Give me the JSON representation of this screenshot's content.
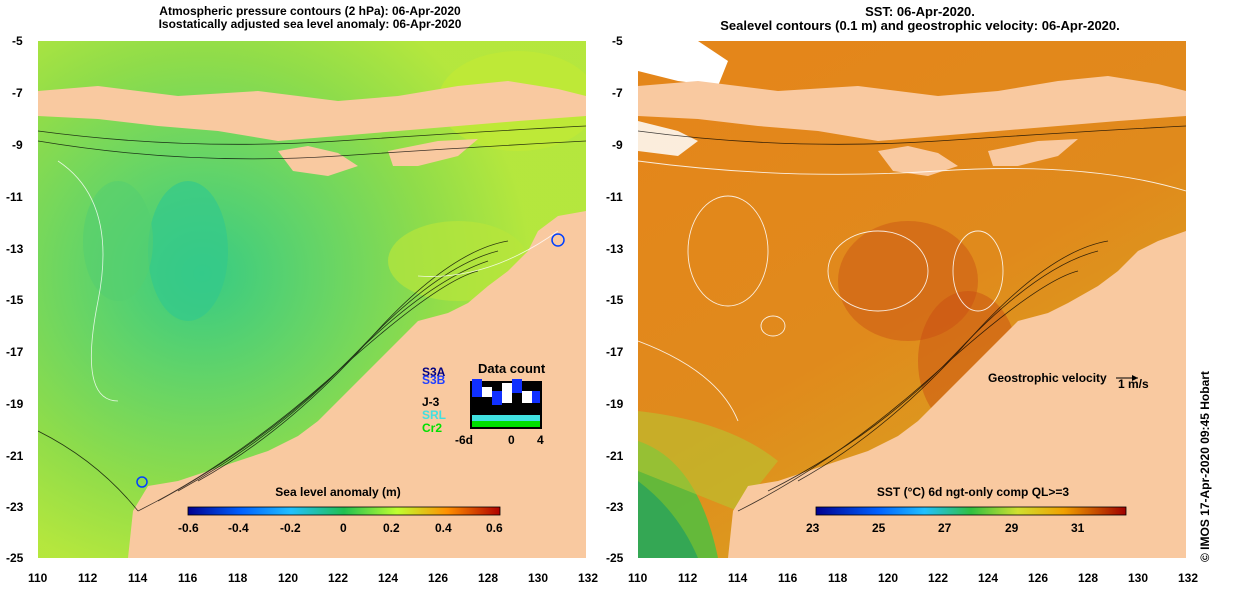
{
  "left_panel": {
    "title_line1": "Atmospheric pressure contours (2 hPa): 06-Apr-2020",
    "title_line2": "Isostatically adjusted sea level anomaly: 06-Apr-2020",
    "colorbar_label": "Sea level anomaly (m)",
    "colorbar_ticks": [
      "-0.6",
      "-0.4",
      "-0.2",
      "0",
      "0.2",
      "0.4",
      "0.6"
    ],
    "data_count": {
      "title": "Data count",
      "missions": [
        {
          "name": "S3A",
          "color": "#000080"
        },
        {
          "name": "S3B",
          "color": "#2040ff"
        },
        {
          "name": "J-3",
          "color": "#000000"
        },
        {
          "name": "SRL",
          "color": "#40e0e0"
        },
        {
          "name": "Cr2",
          "color": "#00e000"
        }
      ],
      "x_ticks": [
        "-6d",
        "0",
        "4"
      ]
    }
  },
  "right_panel": {
    "title_line1": "SST: 06-Apr-2020.",
    "title_line2": "Sealevel contours (0.1 m) and geostrophic velocity: 06-Apr-2020.",
    "colorbar_label": "SST (°C) 6d ngt-only comp QL>=3",
    "colorbar_ticks": [
      "23",
      "25",
      "27",
      "29",
      "31"
    ],
    "velocity_label": "Geostrophic velocity",
    "velocity_scale": "1 m/s"
  },
  "axes": {
    "y_ticks": [
      "-5",
      "-7",
      "-9",
      "-11",
      "-13",
      "-15",
      "-17",
      "-19",
      "-21",
      "-23",
      "-25"
    ],
    "x_ticks": [
      "110",
      "112",
      "114",
      "116",
      "118",
      "120",
      "122",
      "124",
      "126",
      "128",
      "130",
      "132"
    ]
  },
  "credit": "© IMOS 17-Apr-2020 09:45 Hobart",
  "colors": {
    "land": "#f9c9a0",
    "ocean_anomaly": "#7ed957",
    "ocean_sst": "#e3861c"
  }
}
